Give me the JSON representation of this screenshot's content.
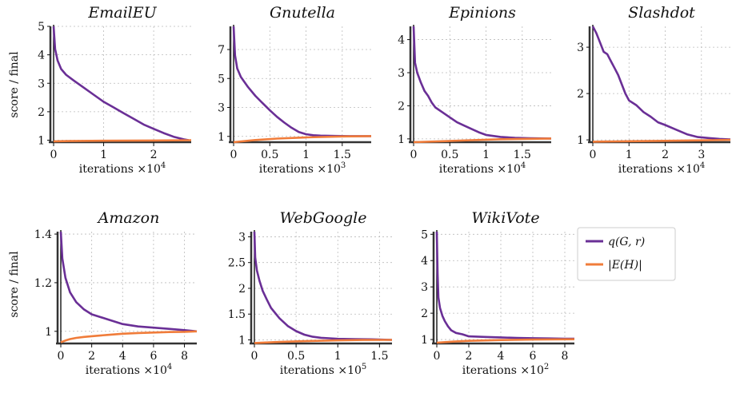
{
  "colors": {
    "q": "#6a2f96",
    "e": "#f07c3a",
    "grid": "#bbbbbb",
    "axis": "#111111"
  },
  "legend": {
    "q_label": "q(G, r)",
    "e_label": "|E(H)|"
  },
  "ylabel": "score / final",
  "chart_data": [
    {
      "type": "line",
      "title": "EmailEU",
      "xlabel": "iterations ×10",
      "xexp": "4",
      "xlim": [
        0,
        2.75
      ],
      "ylim": [
        0.93,
        5
      ],
      "xticks": [
        0,
        1,
        2
      ],
      "yticks": [
        1,
        2,
        3,
        4,
        5
      ],
      "series": [
        {
          "name": "q(G, r)",
          "x": [
            0,
            0.03,
            0.08,
            0.15,
            0.25,
            0.4,
            0.6,
            0.8,
            1.0,
            1.2,
            1.4,
            1.6,
            1.8,
            2.0,
            2.2,
            2.4,
            2.6,
            2.7
          ],
          "y": [
            5.1,
            4.2,
            3.8,
            3.5,
            3.3,
            3.1,
            2.85,
            2.6,
            2.35,
            2.15,
            1.95,
            1.75,
            1.55,
            1.4,
            1.25,
            1.12,
            1.03,
            1.0
          ]
        },
        {
          "name": "|E(H)|",
          "x": [
            0,
            0.3,
            1.0,
            2.0,
            2.75
          ],
          "y": [
            0.96,
            0.97,
            0.98,
            0.99,
            1.0
          ]
        }
      ]
    },
    {
      "type": "line",
      "title": "Gnutella",
      "xlabel": "iterations ×10",
      "xexp": "3",
      "xlim": [
        0,
        1.9
      ],
      "ylim": [
        0.6,
        8.6
      ],
      "xticks": [
        0,
        0.5,
        1,
        1.5
      ],
      "yticks": [
        1,
        3,
        5,
        7
      ],
      "series": [
        {
          "name": "q(G, r)",
          "x": [
            0,
            0.02,
            0.05,
            0.1,
            0.2,
            0.3,
            0.4,
            0.5,
            0.6,
            0.7,
            0.8,
            0.9,
            1.0,
            1.1,
            1.2,
            1.4,
            1.6,
            1.9
          ],
          "y": [
            8.6,
            6.6,
            5.7,
            5.1,
            4.4,
            3.8,
            3.3,
            2.8,
            2.35,
            1.95,
            1.6,
            1.3,
            1.15,
            1.08,
            1.05,
            1.03,
            1.02,
            1.02
          ]
        },
        {
          "name": "|E(H)|",
          "x": [
            0,
            0.3,
            0.6,
            1.0,
            1.5,
            1.9
          ],
          "y": [
            0.6,
            0.75,
            0.85,
            0.93,
            1.0,
            1.02
          ]
        }
      ]
    },
    {
      "type": "line",
      "title": "Epinions",
      "xlabel": "iterations ×10",
      "xexp": "4",
      "xlim": [
        0,
        1.9
      ],
      "ylim": [
        0.9,
        4.4
      ],
      "xticks": [
        0,
        0.5,
        1,
        1.5
      ],
      "yticks": [
        1,
        2,
        3,
        4
      ],
      "series": [
        {
          "name": "q(G, r)",
          "x": [
            0,
            0.02,
            0.05,
            0.1,
            0.15,
            0.2,
            0.25,
            0.3,
            0.4,
            0.5,
            0.6,
            0.7,
            0.8,
            0.9,
            1.0,
            1.2,
            1.4,
            1.6,
            1.9
          ],
          "y": [
            4.4,
            3.3,
            3.0,
            2.7,
            2.45,
            2.3,
            2.1,
            1.95,
            1.8,
            1.65,
            1.5,
            1.4,
            1.3,
            1.2,
            1.12,
            1.06,
            1.03,
            1.02,
            1.01
          ]
        },
        {
          "name": "|E(H)|",
          "x": [
            0,
            0.4,
            0.8,
            1.2,
            1.9
          ],
          "y": [
            0.9,
            0.93,
            0.96,
            0.99,
            1.01
          ]
        }
      ]
    },
    {
      "type": "line",
      "title": "Slashdot",
      "xlabel": "iterations ×10",
      "xexp": "4",
      "xlim": [
        0,
        3.8
      ],
      "ylim": [
        0.95,
        3.45
      ],
      "xticks": [
        0,
        1,
        2,
        3
      ],
      "yticks": [
        1,
        2,
        3
      ],
      "series": [
        {
          "name": "q(G, r)",
          "x": [
            0,
            0.1,
            0.2,
            0.3,
            0.4,
            0.5,
            0.6,
            0.7,
            0.8,
            0.9,
            1.0,
            1.2,
            1.4,
            1.6,
            1.8,
            2.0,
            2.3,
            2.6,
            2.9,
            3.2,
            3.5,
            3.8
          ],
          "y": [
            3.45,
            3.3,
            3.1,
            2.9,
            2.85,
            2.7,
            2.55,
            2.4,
            2.2,
            2.0,
            1.85,
            1.75,
            1.6,
            1.5,
            1.38,
            1.32,
            1.22,
            1.12,
            1.06,
            1.04,
            1.02,
            1.01
          ]
        },
        {
          "name": "|E(H)|",
          "x": [
            0,
            1.0,
            2.0,
            3.0,
            3.8
          ],
          "y": [
            0.96,
            0.97,
            0.98,
            0.99,
            1.0
          ]
        }
      ]
    },
    {
      "type": "line",
      "title": "Amazon",
      "xlabel": "iterations ×10",
      "xexp": "4",
      "xlim": [
        0,
        8.8
      ],
      "ylim": [
        0.95,
        1.41
      ],
      "xticks": [
        0,
        2,
        4,
        6,
        8
      ],
      "yticks": [
        1,
        1.2,
        1.4
      ],
      "series": [
        {
          "name": "q(G, r)",
          "x": [
            0,
            0.1,
            0.3,
            0.6,
            1.0,
            1.5,
            2.0,
            3.0,
            4.0,
            5.0,
            6.0,
            7.0,
            8.0,
            8.8
          ],
          "y": [
            1.42,
            1.3,
            1.22,
            1.16,
            1.12,
            1.09,
            1.07,
            1.05,
            1.03,
            1.02,
            1.015,
            1.01,
            1.005,
            1.0
          ]
        },
        {
          "name": "|E(H)|",
          "x": [
            0,
            0.3,
            0.6,
            1.0,
            1.5,
            2.0,
            3.0,
            4.0,
            5.0,
            6.0,
            7.0,
            8.0,
            8.8
          ],
          "y": [
            0.955,
            0.962,
            0.968,
            0.973,
            0.977,
            0.98,
            0.985,
            0.99,
            0.993,
            0.995,
            0.997,
            0.998,
            1.0
          ]
        }
      ]
    },
    {
      "type": "line",
      "title": "WebGoogle",
      "xlabel": "iterations ×10",
      "xexp": "5",
      "xlim": [
        0,
        1.65
      ],
      "ylim": [
        0.93,
        3.1
      ],
      "xticks": [
        0,
        0.5,
        1,
        1.5
      ],
      "yticks": [
        1,
        1.5,
        2,
        2.5,
        3
      ],
      "series": [
        {
          "name": "q(G, r)",
          "x": [
            0,
            0.01,
            0.03,
            0.06,
            0.1,
            0.15,
            0.2,
            0.3,
            0.4,
            0.5,
            0.6,
            0.7,
            0.8,
            0.9,
            1.0,
            1.2,
            1.4,
            1.65
          ],
          "y": [
            3.1,
            2.6,
            2.35,
            2.15,
            1.95,
            1.78,
            1.62,
            1.42,
            1.27,
            1.17,
            1.1,
            1.06,
            1.04,
            1.03,
            1.02,
            1.015,
            1.01,
            1.0
          ]
        },
        {
          "name": "|E(H)|",
          "x": [
            0,
            0.3,
            0.6,
            1.0,
            1.3,
            1.65
          ],
          "y": [
            0.94,
            0.96,
            0.975,
            0.99,
            0.998,
            1.0
          ]
        }
      ]
    },
    {
      "type": "line",
      "title": "WikiVote",
      "xlabel": "iterations ×10",
      "xexp": "2",
      "xlim": [
        0,
        8.6
      ],
      "ylim": [
        0.85,
        5.1
      ],
      "xticks": [
        0,
        2,
        4,
        6,
        8
      ],
      "yticks": [
        1,
        2,
        3,
        4,
        5
      ],
      "series": [
        {
          "name": "q(G, r)",
          "x": [
            0,
            0.05,
            0.1,
            0.2,
            0.35,
            0.5,
            0.7,
            0.9,
            1.2,
            1.6,
            2.0,
            3.0,
            4.0,
            5.0,
            6.0,
            7.0,
            8.0,
            8.6
          ],
          "y": [
            5.1,
            3.5,
            2.6,
            2.2,
            1.9,
            1.7,
            1.5,
            1.35,
            1.25,
            1.2,
            1.12,
            1.1,
            1.08,
            1.06,
            1.05,
            1.04,
            1.03,
            1.03
          ]
        },
        {
          "name": "|E(H)|",
          "x": [
            0,
            1.0,
            2.0,
            4.0,
            6.0,
            8.6
          ],
          "y": [
            0.88,
            0.92,
            0.95,
            0.98,
            1.0,
            1.01
          ]
        }
      ]
    }
  ]
}
